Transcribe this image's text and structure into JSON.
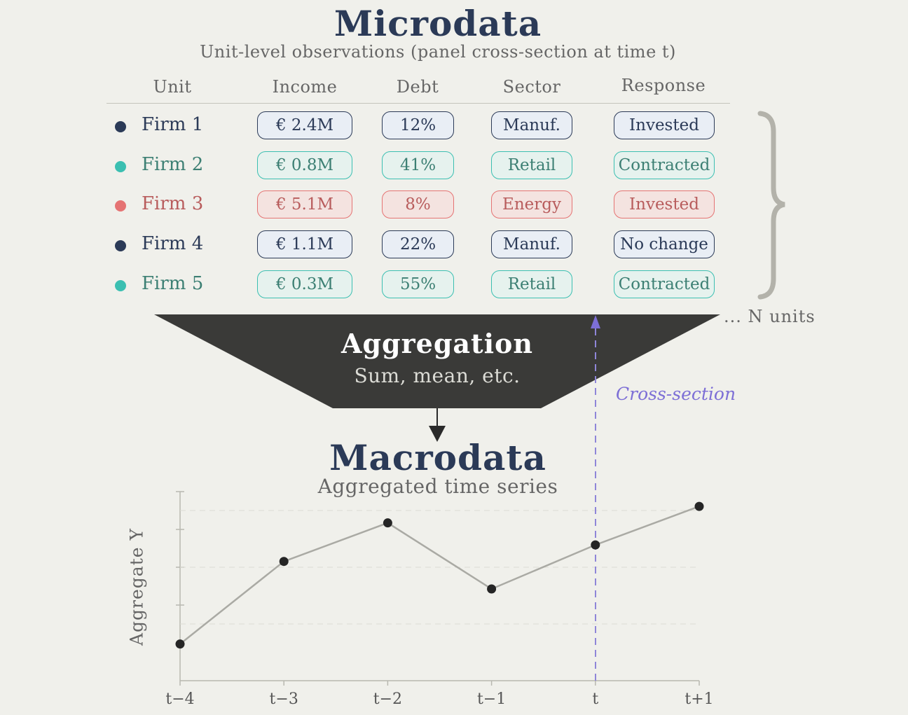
{
  "micro": {
    "title": "Microdata",
    "subtitle": "Unit-level observations (panel cross-section at time t)"
  },
  "headers": [
    "Unit",
    "Income",
    "Debt",
    "Sector",
    "Response"
  ],
  "rows": [
    {
      "unit": "Firm 1",
      "income": "€ 2.4M",
      "debt": "12%",
      "sector": "Manuf.",
      "response": "Invested",
      "color": "navy"
    },
    {
      "unit": "Firm 2",
      "income": "€ 0.8M",
      "debt": "41%",
      "sector": "Retail",
      "response": "Contracted",
      "color": "teal"
    },
    {
      "unit": "Firm 3",
      "income": "€ 5.1M",
      "debt": "8%",
      "sector": "Energy",
      "response": "Invested",
      "color": "red"
    },
    {
      "unit": "Firm 4",
      "income": "€ 1.1M",
      "debt": "22%",
      "sector": "Manuf.",
      "response": "No change",
      "color": "navy"
    },
    {
      "unit": "Firm 5",
      "income": "€ 0.3M",
      "debt": "55%",
      "sector": "Retail",
      "response": "Contracted",
      "color": "teal"
    }
  ],
  "n_units": "... N units",
  "aggregation": {
    "title": "Aggregation",
    "subtitle": "Sum, mean, etc."
  },
  "cross_section_label": "Cross-section",
  "macro": {
    "title": "Macrodata",
    "subtitle": "Aggregated time series"
  },
  "chart_data": {
    "type": "line",
    "x": [
      "t−4",
      "t−3",
      "t−2",
      "t−1",
      "t",
      "t+1"
    ],
    "values": [
      0.2,
      0.65,
      0.86,
      0.5,
      0.74,
      0.95
    ],
    "ylabel": "Aggregate Y",
    "ylim": [
      0,
      1
    ],
    "highlight_x": "t"
  },
  "colors": {
    "navy": "#2b3a57",
    "teal": "#3bbfb1",
    "red": "#e57373",
    "funnel": "#3a3a38",
    "line": "#aaaaa4",
    "cross_section": "#7d6fd6"
  }
}
